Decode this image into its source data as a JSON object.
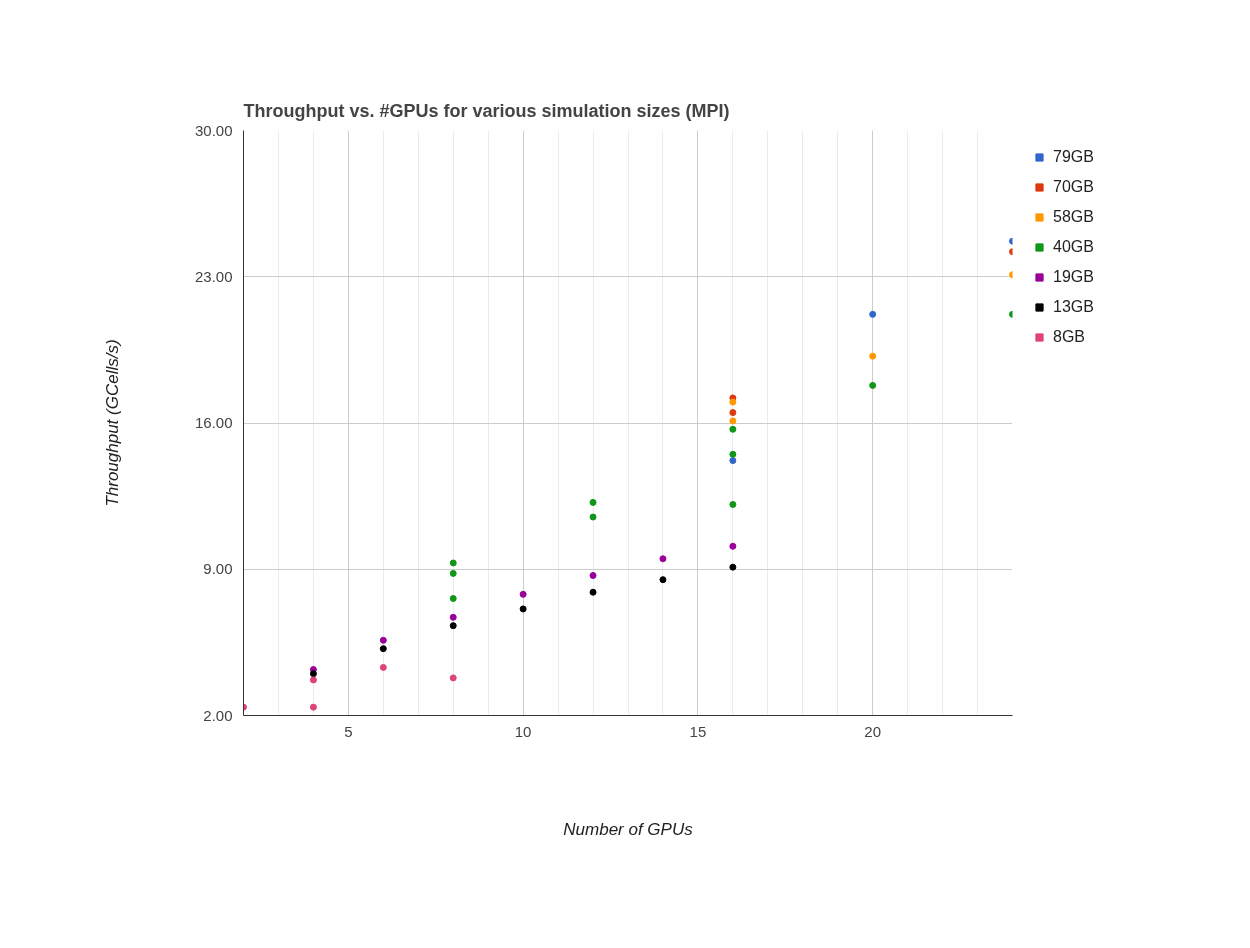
{
  "chart_data": {
    "type": "scatter",
    "title": "Throughput vs. #GPUs for various simulation sizes (MPI)",
    "xlabel": "Number of GPUs",
    "ylabel": "Throughput (GCells/s)",
    "xlim": [
      2,
      24
    ],
    "xticks": [
      5,
      10,
      15,
      20
    ],
    "ylim": [
      2,
      30
    ],
    "yticks": [
      {
        "value": 2,
        "label": "2.00"
      },
      {
        "value": 9,
        "label": "9.00"
      },
      {
        "value": 16,
        "label": "16.00"
      },
      {
        "value": 23,
        "label": "23.00"
      },
      {
        "value": 30,
        "label": "30.00"
      }
    ],
    "grid": true,
    "legend": "right",
    "marker": "circle",
    "series": [
      {
        "name": "79GB",
        "color": "#3366cc",
        "x": [
          16,
          20,
          24
        ],
        "values": [
          14.2,
          21.2,
          24.7
        ]
      },
      {
        "name": "70GB",
        "color": "#dc3912",
        "x": [
          16,
          16,
          24
        ],
        "values": [
          17.2,
          16.5,
          24.2
        ]
      },
      {
        "name": "58GB",
        "color": "#ff9900",
        "x": [
          16,
          16,
          20,
          24
        ],
        "values": [
          17.0,
          16.1,
          19.2,
          23.1
        ]
      },
      {
        "name": "40GB",
        "color": "#109618",
        "x": [
          8,
          8,
          8,
          12,
          12,
          16,
          16,
          16,
          20,
          24
        ],
        "values": [
          9.3,
          8.8,
          7.6,
          12.2,
          11.5,
          15.7,
          14.5,
          12.1,
          17.8,
          21.2
        ]
      },
      {
        "name": "19GB",
        "color": "#990099",
        "x": [
          4,
          6,
          8,
          10,
          12,
          14,
          16
        ],
        "values": [
          4.2,
          5.6,
          6.7,
          7.8,
          8.7,
          9.5,
          10.1
        ]
      },
      {
        "name": "13GB",
        "color": "#000000",
        "x": [
          4,
          6,
          8,
          10,
          12,
          14,
          16
        ],
        "values": [
          4.0,
          5.2,
          6.3,
          7.1,
          7.9,
          8.5,
          9.1
        ]
      },
      {
        "name": "8GB",
        "color": "#dd4477",
        "x": [
          2,
          4,
          4,
          6,
          8
        ],
        "values": [
          2.4,
          3.7,
          2.4,
          4.3,
          3.8
        ]
      }
    ]
  }
}
